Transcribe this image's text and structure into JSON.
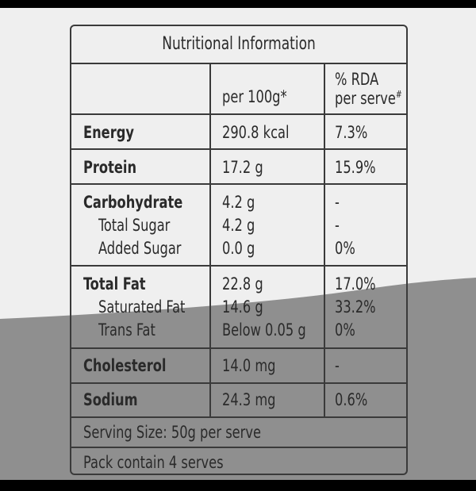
{
  "title": "Nutritional Information",
  "headers": {
    "per_100g": "per 100g*",
    "rda_line1": "% RDA",
    "rda_line2": "per serve",
    "rda_mark": "#"
  },
  "rows": {
    "energy": {
      "name": "Energy",
      "value": "290.8 kcal",
      "rda": "7.3%"
    },
    "protein": {
      "name": "Protein",
      "value": "17.2 g",
      "rda": "15.9%"
    },
    "carbohydrate": {
      "name": "Carbohydrate",
      "value": "4.2 g",
      "rda": "-"
    },
    "total_sugar": {
      "name": "Total Sugar",
      "value": "4.2 g",
      "rda": "-"
    },
    "added_sugar": {
      "name": "Added Sugar",
      "value": "0.0 g",
      "rda": "0%"
    },
    "total_fat": {
      "name": "Total Fat",
      "value": "22.8 g",
      "rda": "17.0%"
    },
    "saturated_fat": {
      "name": "Saturated Fat",
      "value": "14.6 g",
      "rda": "33.2%"
    },
    "trans_fat": {
      "name": "Trans Fat",
      "value": "Below 0.05 g",
      "rda": "0%"
    },
    "cholesterol": {
      "name": "Cholesterol",
      "value": "14.0 mg",
      "rda": "-"
    },
    "sodium": {
      "name": "Sodium",
      "value": "24.3 mg",
      "rda": "0.6%"
    }
  },
  "footer": {
    "serving_size": "Serving Size: 50g per serve",
    "pack": "Pack contain 4 serves"
  }
}
